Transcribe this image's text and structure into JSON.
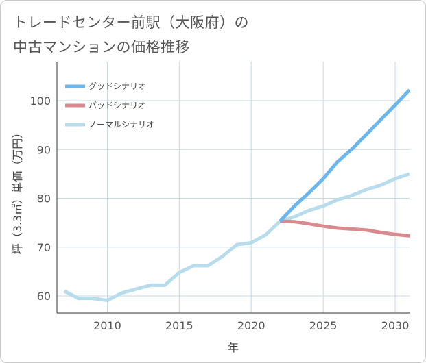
{
  "chart_data": {
    "type": "line",
    "title_lines": [
      "トレードセンター前駅（大阪府）の",
      "中古マンションの価格推移"
    ],
    "xlabel": "年",
    "ylabel": "坪（3.3㎡）単価（万円）",
    "xlim": [
      2006.5,
      2031
    ],
    "ylim": [
      56.5,
      108
    ],
    "xticks": [
      2010,
      2015,
      2020,
      2025,
      2030
    ],
    "yticks": [
      60,
      70,
      80,
      90,
      100
    ],
    "grid": true,
    "legend_position": "top-left",
    "series": [
      {
        "name": "グッドシナリオ",
        "color": "#6bb6ec",
        "x": [
          2022,
          2023,
          2024,
          2025,
          2026,
          2027,
          2028,
          2029,
          2030,
          2031
        ],
        "values": [
          75.3,
          78.4,
          81.1,
          84.0,
          87.5,
          90.1,
          93.1,
          96.1,
          99.1,
          102.2
        ]
      },
      {
        "name": "バッドシナリオ",
        "color": "#d98a8f",
        "x": [
          2022,
          2023,
          2024,
          2025,
          2026,
          2027,
          2028,
          2029,
          2030,
          2031
        ],
        "values": [
          75.3,
          75.2,
          74.8,
          74.3,
          73.9,
          73.7,
          73.5,
          73.0,
          72.6,
          72.3
        ]
      },
      {
        "name": "ノーマルシナリオ",
        "color": "#b7dceb",
        "x": [
          2007,
          2008,
          2009,
          2010,
          2011,
          2012,
          2013,
          2014,
          2015,
          2016,
          2017,
          2018,
          2019,
          2020,
          2021,
          2022,
          2023,
          2024,
          2025,
          2026,
          2027,
          2028,
          2029,
          2030,
          2031
        ],
        "values": [
          61.0,
          59.5,
          59.5,
          59.1,
          60.6,
          61.4,
          62.2,
          62.2,
          64.8,
          66.2,
          66.2,
          68.1,
          70.5,
          70.9,
          72.5,
          75.3,
          76.2,
          77.5,
          78.4,
          79.7,
          80.6,
          81.8,
          82.7,
          84.0,
          85.0
        ]
      }
    ]
  }
}
